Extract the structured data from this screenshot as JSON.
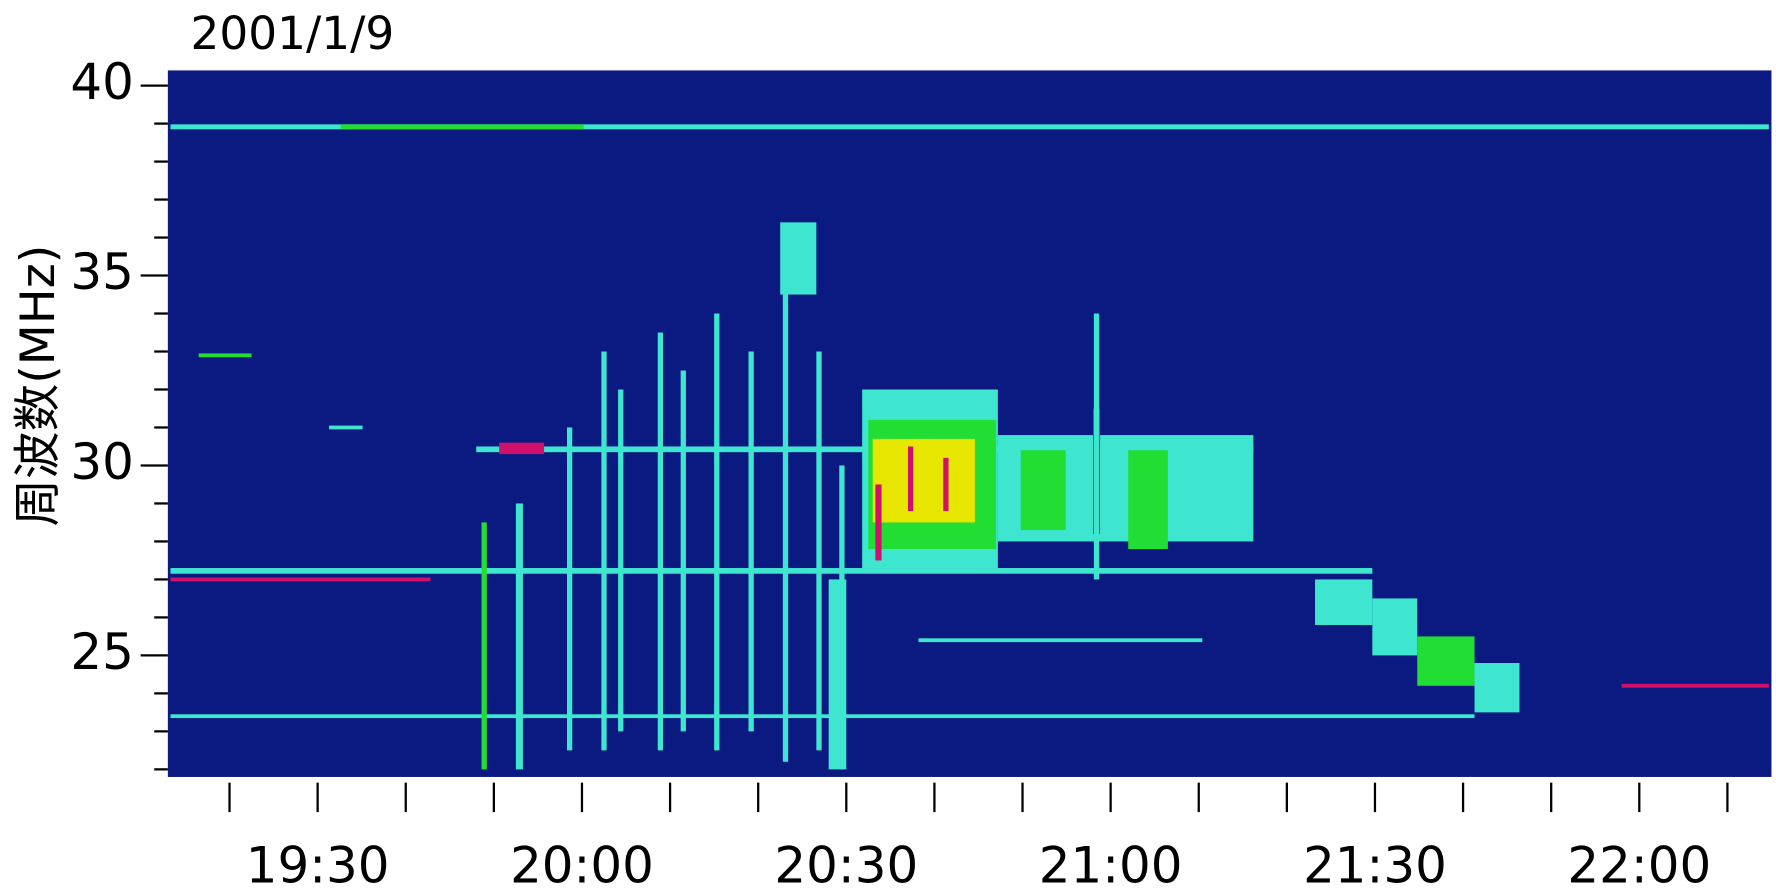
{
  "chart_data": {
    "type": "spectrogram",
    "title": "2001/1/9",
    "y_label": "周波数(MHz)",
    "xlim": [
      1153,
      1335
    ],
    "ylim": [
      21.8,
      40.4
    ],
    "xticks": [
      {
        "value": 1170,
        "label": "19:30"
      },
      {
        "value": 1200,
        "label": "20:00"
      },
      {
        "value": 1230,
        "label": "20:30"
      },
      {
        "value": 1260,
        "label": "21:00"
      },
      {
        "value": 1290,
        "label": "21:30"
      },
      {
        "value": 1320,
        "label": "22:00"
      }
    ],
    "xminor_ticks": [
      1160,
      1180,
      1190,
      1210,
      1220,
      1240,
      1250,
      1270,
      1280,
      1300,
      1310,
      1330
    ],
    "yticks": [
      25,
      30,
      35,
      40
    ],
    "yminor_ticks": [
      22,
      23,
      24,
      26,
      27,
      28,
      29,
      31,
      32,
      33,
      34,
      36,
      37,
      38,
      39
    ],
    "background": "#0b1a80",
    "level_colors": [
      "#3ee6cf",
      "#22dd33",
      "#e6e600",
      "#d0106a"
    ],
    "features": [
      [
        1153.3,
        1334.7,
        38.85,
        38.98,
        1
      ],
      [
        1172.6,
        1200.2,
        38.85,
        38.98,
        2
      ],
      [
        1153.3,
        1289.7,
        27.15,
        27.3,
        1
      ],
      [
        1153.3,
        1182.8,
        26.95,
        27.05,
        4
      ],
      [
        1153.3,
        1301.3,
        23.35,
        23.45,
        1
      ],
      [
        1188,
        1276.2,
        30.35,
        30.5,
        1
      ],
      [
        1190.6,
        1195.7,
        30.3,
        30.6,
        4
      ],
      [
        1238.2,
        1270.4,
        25.35,
        25.45,
        1
      ],
      [
        1318,
        1334.7,
        24.15,
        24.25,
        4
      ],
      [
        1188.6,
        1189.2,
        22,
        28.5,
        2
      ],
      [
        1192.5,
        1193.3,
        22,
        29,
        1
      ],
      [
        1198.3,
        1198.9,
        22.5,
        31,
        1
      ],
      [
        1202.2,
        1202.8,
        22.5,
        33,
        1
      ],
      [
        1204.1,
        1204.7,
        23,
        32,
        1
      ],
      [
        1208.6,
        1209.2,
        22.5,
        33.5,
        1
      ],
      [
        1211.2,
        1211.8,
        23,
        32.5,
        1
      ],
      [
        1215,
        1215.6,
        22.5,
        34,
        1
      ],
      [
        1218.9,
        1219.5,
        23,
        33,
        1
      ],
      [
        1222.8,
        1223.4,
        22.2,
        35,
        1
      ],
      [
        1226.6,
        1227.2,
        22.5,
        33,
        1
      ],
      [
        1229.2,
        1229.8,
        22,
        30,
        1
      ],
      [
        1222.5,
        1226.6,
        34.5,
        36.4,
        1
      ],
      [
        1228,
        1230,
        22,
        27,
        1
      ],
      [
        1231.8,
        1247.2,
        27.3,
        32,
        1
      ],
      [
        1232.5,
        1247,
        27.8,
        31.2,
        2
      ],
      [
        1233,
        1244.6,
        28.5,
        30.7,
        3
      ],
      [
        1233.3,
        1234,
        27.5,
        29.5,
        4
      ],
      [
        1237,
        1237.6,
        28.8,
        30.5,
        4
      ],
      [
        1241,
        1241.6,
        28.8,
        30.2,
        4
      ],
      [
        1247.2,
        1276.2,
        28,
        30.8,
        1
      ],
      [
        1249.8,
        1254.9,
        28.3,
        30.4,
        2
      ],
      [
        1258,
        1258.8,
        28.2,
        31.5,
        4
      ],
      [
        1258.1,
        1258.7,
        27,
        34,
        1
      ],
      [
        1262,
        1266.5,
        27.8,
        30.4,
        2
      ],
      [
        1283.2,
        1289.7,
        25.8,
        27,
        1
      ],
      [
        1289.7,
        1294.8,
        25,
        26.5,
        1
      ],
      [
        1294.8,
        1301.3,
        24.2,
        25.5,
        2
      ],
      [
        1301.3,
        1306.4,
        23.5,
        24.8,
        1
      ],
      [
        1156.5,
        1162.5,
        32.85,
        32.95,
        2
      ],
      [
        1171.3,
        1175.1,
        30.95,
        31.05,
        1
      ]
    ]
  }
}
